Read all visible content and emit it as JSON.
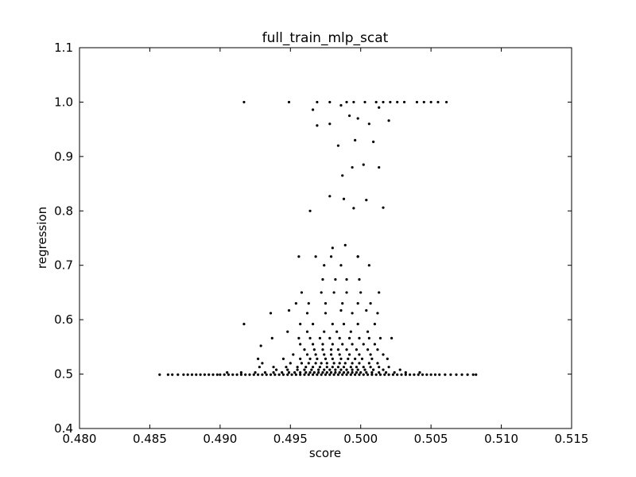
{
  "chart_data": {
    "type": "scatter",
    "title": "full_train_mlp_scat",
    "xlabel": "score",
    "ylabel": "regression",
    "xlim": [
      0.48,
      0.515
    ],
    "ylim": [
      0.4,
      1.1
    ],
    "grid": false,
    "legend": "none",
    "marker_color": "#000000",
    "xticks": [
      "0.480",
      "0.485",
      "0.490",
      "0.495",
      "0.500",
      "0.505",
      "0.510",
      "0.515"
    ],
    "xtick_values": [
      0.48,
      0.485,
      0.49,
      0.495,
      0.5,
      0.505,
      0.51,
      0.515
    ],
    "yticks": [
      "0.4",
      "0.5",
      "0.6",
      "0.7",
      "0.8",
      "0.9",
      "1.0",
      "1.1"
    ],
    "ytick_values": [
      0.4,
      0.5,
      0.6,
      0.7,
      0.8,
      0.9,
      1.0,
      1.1
    ],
    "series": [
      {
        "x": [
          0.4857,
          0.4863,
          0.4866,
          0.487,
          0.4874,
          0.4877,
          0.488,
          0.4883,
          0.4886,
          0.4889,
          0.4892,
          0.4895,
          0.4898,
          0.49,
          0.4903,
          0.4906,
          0.4909,
          0.4912,
          0.4915,
          0.4918,
          0.4921,
          0.4924,
          0.4927,
          0.493,
          0.4933,
          0.4936,
          0.4939,
          0.4942,
          0.4945,
          0.4948,
          0.4951,
          0.4954,
          0.4957,
          0.496,
          0.4963,
          0.4966,
          0.4969,
          0.4972,
          0.4975,
          0.4978,
          0.4981,
          0.4984,
          0.4987,
          0.499,
          0.4993,
          0.4996,
          0.4999,
          0.5002,
          0.5005,
          0.5008,
          0.5011,
          0.5014,
          0.5017,
          0.502,
          0.5023,
          0.5026,
          0.5029,
          0.5032,
          0.5035,
          0.5038,
          0.5041,
          0.5044,
          0.5047,
          0.505,
          0.5053,
          0.5056,
          0.506,
          0.5064,
          0.5068,
          0.5072,
          0.5076,
          0.508,
          0.5082,
          0.4905,
          0.4915,
          0.4925,
          0.4932,
          0.4938,
          0.4944,
          0.4949,
          0.4953,
          0.4957,
          0.4961,
          0.4964,
          0.4967,
          0.497,
          0.4973,
          0.4976,
          0.4979,
          0.4982,
          0.4985,
          0.4988,
          0.4991,
          0.4994,
          0.4997,
          0.5,
          0.5004,
          0.5008,
          0.5013,
          0.5018,
          0.5024,
          0.5032,
          0.5042,
          0.494,
          0.4948,
          0.4955,
          0.496,
          0.4965,
          0.497,
          0.4974,
          0.4978,
          0.4982,
          0.4986,
          0.499,
          0.4994,
          0.4998,
          0.5003,
          0.5009,
          0.5016,
          0.5028,
          0.4928,
          0.4938,
          0.4947,
          0.4955,
          0.4961,
          0.4966,
          0.4971,
          0.4976,
          0.498,
          0.4984,
          0.4988,
          0.4993,
          0.4997,
          0.5002,
          0.5007,
          0.5013,
          0.502,
          0.493,
          0.495,
          0.4958,
          0.4963,
          0.4968,
          0.4972,
          0.4976,
          0.4981,
          0.4985,
          0.4989,
          0.4994,
          0.4999,
          0.5006,
          0.5012,
          0.4927,
          0.4945,
          0.4957,
          0.4964,
          0.4969,
          0.4975,
          0.498,
          0.4986,
          0.4991,
          0.4996,
          0.5001,
          0.5008,
          0.5019,
          0.4952,
          0.4962,
          0.4968,
          0.4974,
          0.4979,
          0.4985,
          0.4992,
          0.4999,
          0.5007,
          0.5016,
          0.496,
          0.4967,
          0.4973,
          0.4979,
          0.4984,
          0.499,
          0.4997,
          0.5005,
          0.5012,
          0.4957,
          0.4966,
          0.4973,
          0.498,
          0.4987,
          0.4994,
          0.5002,
          0.501,
          0.4929,
          0.4937,
          0.4956,
          0.4964,
          0.4971,
          0.4978,
          0.4985,
          0.4992,
          0.4999,
          0.5006,
          0.5014,
          0.5022,
          0.4948,
          0.4962,
          0.4974,
          0.4983,
          0.4993,
          0.5005,
          0.4917,
          0.4957,
          0.4966,
          0.498,
          0.4988,
          0.4998,
          0.501,
          0.4936,
          0.4949,
          0.4962,
          0.4975,
          0.4986,
          0.4994,
          0.5004,
          0.5012,
          0.4954,
          0.4963,
          0.4975,
          0.4987,
          0.4998,
          0.5007,
          0.4958,
          0.4972,
          0.4981,
          0.499,
          0.5,
          0.5013,
          0.4973,
          0.4982,
          0.499,
          0.4999,
          0.4974,
          0.4979,
          0.4986,
          0.4998,
          0.5006,
          0.4956,
          0.4968,
          0.498,
          0.4989,
          0.4998,
          0.4964,
          0.4978,
          0.4988,
          0.4995,
          0.5004,
          0.5016,
          0.4987,
          0.4994,
          0.5002,
          0.5013,
          0.4969,
          0.4984,
          0.4996,
          0.5009,
          0.4917,
          0.4949,
          0.4969,
          0.4978,
          0.499,
          0.4995,
          0.5003,
          0.5011,
          0.5016,
          0.5021,
          0.5026,
          0.5031,
          0.504,
          0.5045,
          0.505,
          0.5055,
          0.5061,
          0.4966,
          0.4978,
          0.4986,
          0.4992,
          0.4998,
          0.5006,
          0.5013,
          0.502
        ],
        "y": [
          0.499,
          0.499,
          0.499,
          0.499,
          0.499,
          0.499,
          0.499,
          0.499,
          0.499,
          0.499,
          0.499,
          0.499,
          0.499,
          0.499,
          0.499,
          0.499,
          0.499,
          0.499,
          0.499,
          0.499,
          0.499,
          0.499,
          0.499,
          0.499,
          0.499,
          0.499,
          0.499,
          0.499,
          0.499,
          0.499,
          0.499,
          0.499,
          0.499,
          0.499,
          0.499,
          0.499,
          0.499,
          0.499,
          0.499,
          0.499,
          0.499,
          0.499,
          0.499,
          0.499,
          0.499,
          0.499,
          0.499,
          0.499,
          0.499,
          0.499,
          0.499,
          0.499,
          0.499,
          0.499,
          0.499,
          0.499,
          0.499,
          0.499,
          0.499,
          0.499,
          0.499,
          0.499,
          0.499,
          0.499,
          0.499,
          0.499,
          0.499,
          0.499,
          0.499,
          0.499,
          0.499,
          0.499,
          0.499,
          0.503,
          0.503,
          0.503,
          0.503,
          0.503,
          0.503,
          0.503,
          0.503,
          0.503,
          0.503,
          0.503,
          0.503,
          0.503,
          0.503,
          0.503,
          0.503,
          0.503,
          0.503,
          0.503,
          0.503,
          0.503,
          0.503,
          0.503,
          0.503,
          0.503,
          0.503,
          0.503,
          0.503,
          0.503,
          0.503,
          0.508,
          0.508,
          0.508,
          0.508,
          0.508,
          0.508,
          0.508,
          0.508,
          0.508,
          0.508,
          0.508,
          0.508,
          0.508,
          0.508,
          0.508,
          0.508,
          0.508,
          0.513,
          0.513,
          0.513,
          0.513,
          0.513,
          0.513,
          0.513,
          0.513,
          0.513,
          0.513,
          0.513,
          0.513,
          0.513,
          0.513,
          0.513,
          0.513,
          0.513,
          0.52,
          0.52,
          0.52,
          0.52,
          0.52,
          0.52,
          0.52,
          0.52,
          0.52,
          0.52,
          0.52,
          0.52,
          0.52,
          0.52,
          0.528,
          0.528,
          0.528,
          0.528,
          0.528,
          0.528,
          0.528,
          0.528,
          0.528,
          0.528,
          0.528,
          0.528,
          0.528,
          0.536,
          0.536,
          0.536,
          0.536,
          0.536,
          0.536,
          0.536,
          0.536,
          0.536,
          0.536,
          0.545,
          0.545,
          0.545,
          0.545,
          0.545,
          0.545,
          0.545,
          0.545,
          0.545,
          0.555,
          0.555,
          0.555,
          0.555,
          0.555,
          0.555,
          0.555,
          0.555,
          0.552,
          0.566,
          0.566,
          0.566,
          0.566,
          0.566,
          0.566,
          0.566,
          0.566,
          0.566,
          0.566,
          0.566,
          0.578,
          0.578,
          0.578,
          0.578,
          0.578,
          0.578,
          0.592,
          0.592,
          0.592,
          0.592,
          0.592,
          0.592,
          0.592,
          0.612,
          0.617,
          0.612,
          0.612,
          0.617,
          0.612,
          0.617,
          0.612,
          0.63,
          0.63,
          0.63,
          0.63,
          0.63,
          0.63,
          0.65,
          0.65,
          0.65,
          0.65,
          0.65,
          0.65,
          0.674,
          0.674,
          0.674,
          0.674,
          0.7,
          0.716,
          0.7,
          0.716,
          0.7,
          0.716,
          0.716,
          0.732,
          0.737,
          0.716,
          0.8,
          0.827,
          0.822,
          0.805,
          0.82,
          0.806,
          0.865,
          0.88,
          0.885,
          0.88,
          0.957,
          0.92,
          0.93,
          0.927,
          1.0,
          1.0,
          1.0,
          1.0,
          1.0,
          1.0,
          1.0,
          1.0,
          1.0,
          1.0,
          1.0,
          1.0,
          1.0,
          1.0,
          1.0,
          1.0,
          1.0,
          0.986,
          0.96,
          0.994,
          0.975,
          0.97,
          0.96,
          0.99,
          0.966
        ]
      }
    ]
  }
}
